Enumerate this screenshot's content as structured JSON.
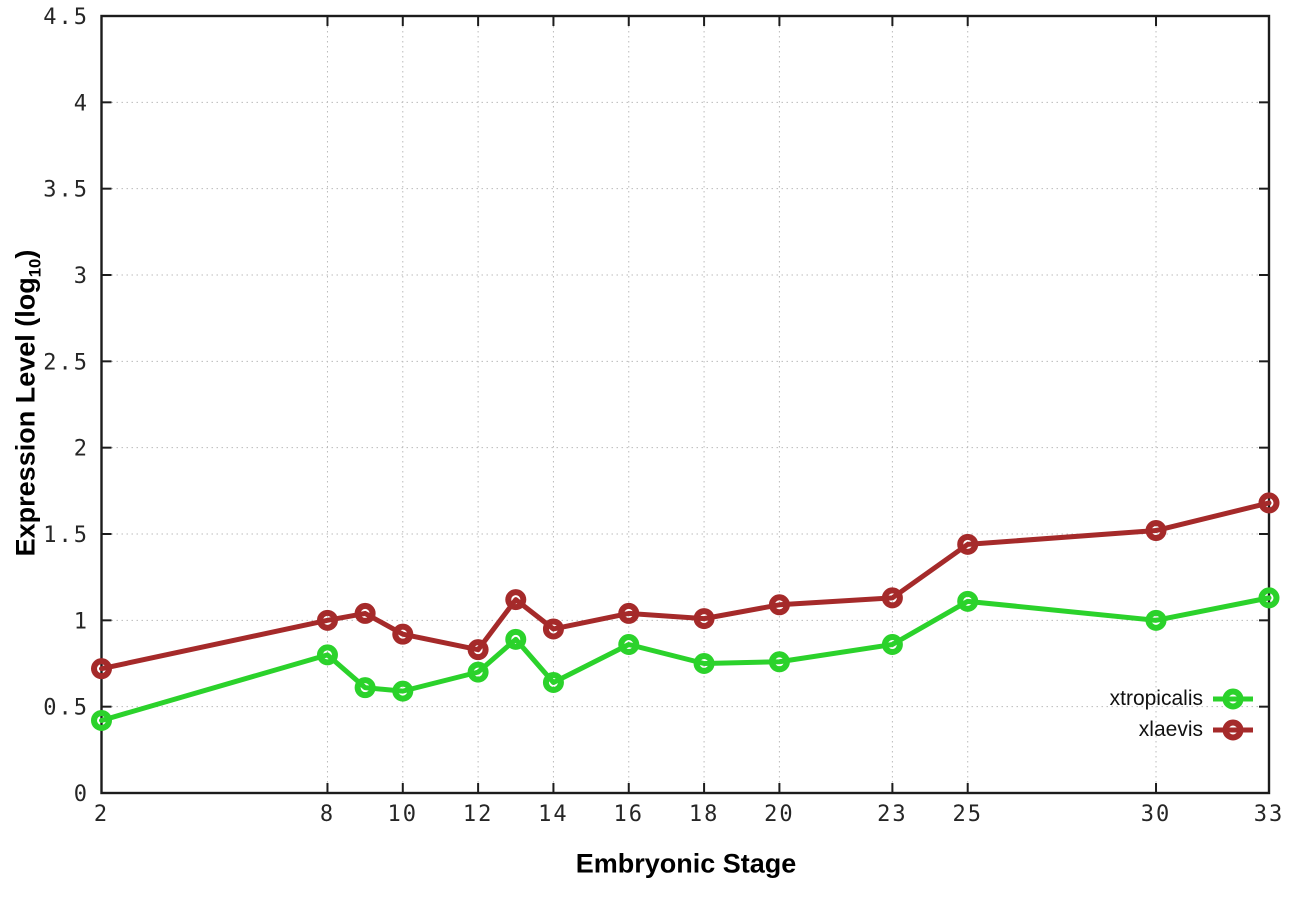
{
  "chart_data": {
    "type": "line",
    "xlabel": "Embryonic Stage",
    "ylabel": {
      "main": "Expression Level (log",
      "sub": "10",
      "end": ")"
    },
    "xlim": [
      2,
      33
    ],
    "ylim": [
      0,
      4.5
    ],
    "xticks": [
      2,
      8,
      10,
      12,
      14,
      16,
      18,
      20,
      23,
      25,
      30,
      33
    ],
    "yticks": [
      0,
      0.5,
      1,
      1.5,
      2,
      2.5,
      3,
      3.5,
      4,
      4.5
    ],
    "grid": "dotted",
    "legend_position": "inside-bottom-right",
    "x": [
      2,
      8,
      9,
      10,
      12,
      13,
      14,
      16,
      18,
      20,
      23,
      25,
      30,
      33
    ],
    "series": [
      {
        "name": "xtropicalis",
        "color": "#2bd22b",
        "marker": "open-circle",
        "values": [
          0.42,
          0.8,
          0.61,
          0.59,
          0.7,
          0.89,
          0.64,
          0.86,
          0.75,
          0.76,
          0.86,
          1.11,
          1.0,
          1.13
        ]
      },
      {
        "name": "xlaevis",
        "color": "#a52a2a",
        "marker": "open-circle",
        "values": [
          0.72,
          1.0,
          1.04,
          0.92,
          0.83,
          1.12,
          0.95,
          1.04,
          1.01,
          1.09,
          1.13,
          1.44,
          1.52,
          1.68
        ]
      }
    ],
    "style": {
      "axis_color": "#1c1c1c",
      "grid_color": "#bbbbbb",
      "tick_label_color": "#262626",
      "background": "#ffffff"
    }
  }
}
